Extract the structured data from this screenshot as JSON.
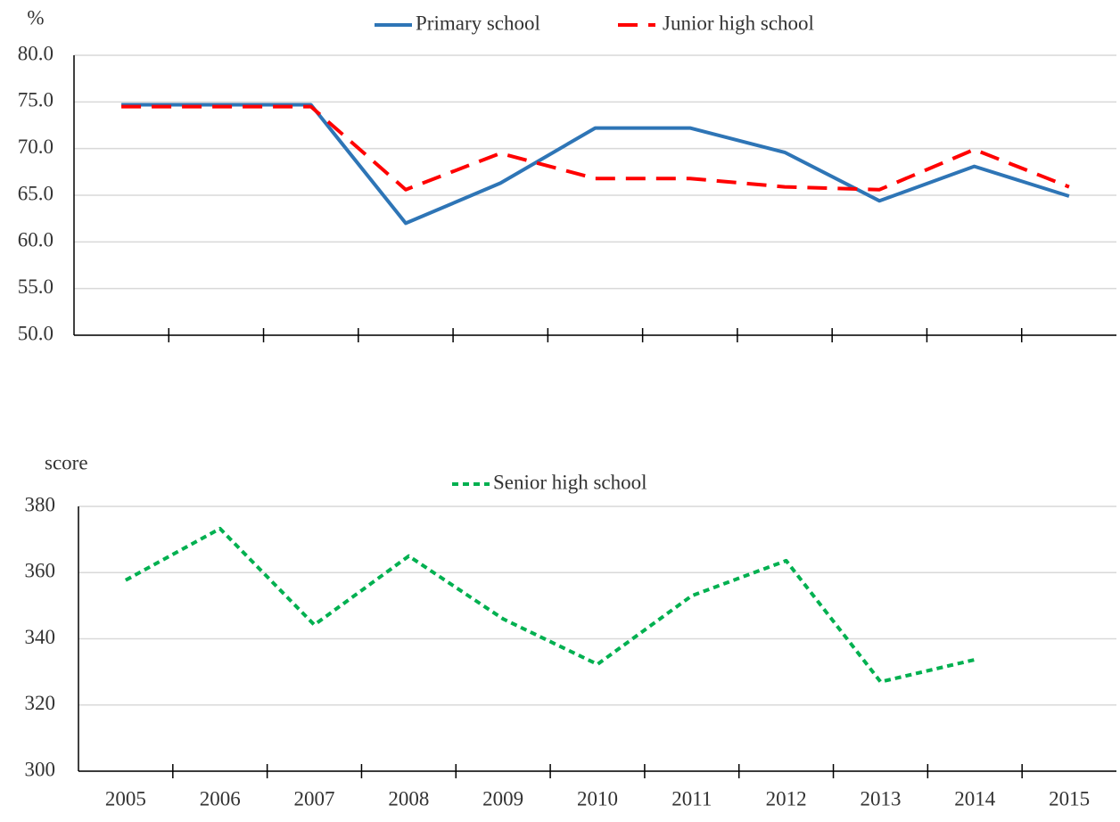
{
  "chart_data": [
    {
      "type": "line",
      "y_label": "%",
      "ylim": [
        50,
        80
      ],
      "yticks": [
        {
          "value": 50,
          "label": "50.0"
        },
        {
          "value": 55,
          "label": "55.0"
        },
        {
          "value": 60,
          "label": "60.0"
        },
        {
          "value": 65,
          "label": "65.0"
        },
        {
          "value": 70,
          "label": "70.0"
        },
        {
          "value": 75,
          "label": "75.0"
        },
        {
          "value": 80,
          "label": "80.0"
        }
      ],
      "grid": true,
      "series": [
        {
          "name": "Primary school",
          "color": "#2E75B6",
          "line_style": "solid",
          "values": [
            74.7,
            74.7,
            74.7,
            62.0,
            66.3,
            72.2,
            72.2,
            69.6,
            64.4,
            68.1,
            64.9
          ]
        },
        {
          "name": "Junior high school",
          "color": "#FF0000",
          "line_style": "long-dash",
          "values": [
            74.5,
            74.5,
            74.5,
            65.6,
            69.5,
            66.8,
            66.8,
            65.9,
            65.6,
            69.9,
            65.9
          ]
        }
      ]
    },
    {
      "type": "line",
      "y_label": "score",
      "categories": [
        "2005",
        "2006",
        "2007",
        "2008",
        "2009",
        "2010",
        "2011",
        "2012",
        "2013",
        "2014",
        "2015"
      ],
      "ylim": [
        300,
        380
      ],
      "yticks": [
        300,
        320,
        340,
        360,
        380
      ],
      "grid": true,
      "series": [
        {
          "name": "Senior high school",
          "color": "#00B050",
          "line_style": "short-dash",
          "values": [
            357.7,
            373.3,
            344.2,
            365.0,
            346.0,
            332.3,
            353.0,
            363.6,
            327.0,
            333.7,
            null
          ]
        }
      ]
    }
  ]
}
